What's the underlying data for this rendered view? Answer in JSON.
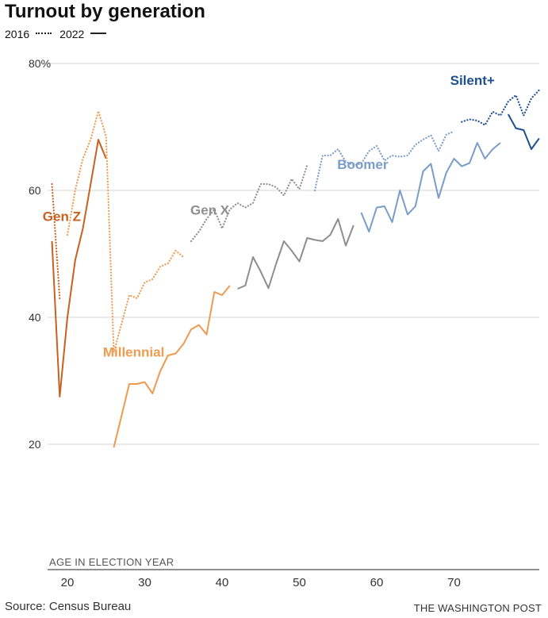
{
  "title": "Turnout by generation",
  "legend": {
    "dotted_label": "2016",
    "solid_label": "2022"
  },
  "source": "Source: Census Bureau",
  "credit": "THE WASHINGTON POST",
  "colors": {
    "genz": "#c8611f",
    "millennial": "#ef9a4f",
    "genx": "#8e8e8e",
    "boomer": "#7a9cc9",
    "silent": "#1d4f91"
  },
  "chart_data": {
    "type": "line",
    "title": "Turnout by generation",
    "xlabel": "AGE IN ELECTION YEAR",
    "ylabel": "",
    "xlim": [
      18,
      80
    ],
    "ylim": [
      0,
      80
    ],
    "x_ticks": [
      20,
      30,
      40,
      50,
      60,
      70
    ],
    "y_ticks": [
      {
        "value": 20,
        "label": "20"
      },
      {
        "value": 40,
        "label": "40"
      },
      {
        "value": 60,
        "label": "60"
      },
      {
        "value": 80,
        "label": "80%"
      }
    ],
    "series": [
      {
        "name": "Gen Z",
        "year": "2016",
        "color_key": "genz",
        "style": "dotted",
        "x": [
          18,
          19
        ],
        "y": [
          61,
          43
        ]
      },
      {
        "name": "Gen Z",
        "year": "2022",
        "color_key": "genz",
        "style": "solid",
        "x": [
          18,
          19,
          20,
          21,
          22,
          23,
          24,
          25
        ],
        "y": [
          52,
          27.5,
          40,
          49,
          54,
          61,
          68,
          65
        ]
      },
      {
        "name": "Millennial",
        "year": "2016",
        "color_key": "millennial",
        "style": "dotted",
        "x": [
          20,
          21,
          22,
          23,
          24,
          25,
          26,
          27,
          28,
          29,
          30,
          31,
          32,
          33,
          34,
          35
        ],
        "y": [
          53,
          60,
          65,
          68,
          72.5,
          68.5,
          34.5,
          39,
          43.5,
          43,
          45.5,
          46,
          48,
          48.5,
          50.5,
          49.5
        ]
      },
      {
        "name": "Millennial",
        "year": "2022",
        "color_key": "millennial",
        "style": "solid",
        "x": [
          26,
          27,
          28,
          29,
          30,
          31,
          32,
          33,
          34,
          35,
          36,
          37,
          38,
          39,
          40,
          41
        ],
        "y": [
          19.5,
          24.5,
          29.5,
          29.5,
          29.8,
          28,
          31.5,
          34,
          34.3,
          35.8,
          38.1,
          38.8,
          37.3,
          44,
          43.5,
          45
        ]
      },
      {
        "name": "Gen X",
        "year": "2016",
        "color_key": "genx",
        "style": "dotted",
        "x": [
          36,
          37,
          38,
          39,
          40,
          41,
          42,
          43,
          44,
          45,
          46,
          47,
          48,
          49,
          50,
          51
        ],
        "y": [
          52,
          53.5,
          55.5,
          57,
          54,
          57,
          58,
          57.3,
          58,
          61,
          61,
          60.5,
          59.2,
          61.8,
          60.2,
          64
        ]
      },
      {
        "name": "Gen X",
        "year": "2022",
        "color_key": "genx",
        "style": "solid",
        "x": [
          42,
          43,
          44,
          45,
          46,
          47,
          48,
          49,
          50,
          51,
          52,
          53,
          54,
          55,
          56,
          57
        ],
        "y": [
          44.5,
          45,
          49.5,
          47.2,
          44.6,
          48.5,
          52,
          50.5,
          48.8,
          52.5,
          52.2,
          52,
          53,
          55.5,
          51.3,
          54.5
        ]
      },
      {
        "name": "Boomer",
        "year": "2016",
        "color_key": "boomer",
        "style": "dotted",
        "x": [
          52,
          53,
          54,
          55,
          56,
          57,
          58,
          59,
          60,
          61,
          62,
          63,
          64,
          65,
          66,
          67,
          68,
          69,
          70
        ],
        "y": [
          60,
          65.5,
          65.5,
          66.5,
          64.5,
          64,
          64.2,
          66.2,
          67,
          64.7,
          65.5,
          65.3,
          65.5,
          67.2,
          68,
          68.7,
          66.2,
          68.8,
          69.3
        ]
      },
      {
        "name": "Boomer",
        "year": "2022",
        "color_key": "boomer",
        "style": "solid",
        "x": [
          58,
          59,
          60,
          61,
          62,
          63,
          64,
          65,
          66,
          67,
          68,
          69,
          70,
          71,
          72,
          73,
          74,
          75,
          76
        ],
        "y": [
          56.5,
          53.5,
          57.3,
          57.5,
          55,
          60,
          56.2,
          57.5,
          63,
          64.2,
          58.8,
          62.8,
          65,
          63.8,
          64.3,
          67.5,
          65,
          66.5,
          67.5
        ]
      },
      {
        "name": "Silent+",
        "year": "2016",
        "color_key": "silent",
        "style": "dotted",
        "x": [
          71,
          72,
          73,
          74,
          75,
          76,
          77,
          78,
          79,
          80,
          81
        ],
        "y": [
          70.8,
          71.2,
          71,
          70.3,
          72.4,
          71.8,
          74,
          75,
          71.8,
          74.5,
          75.8
        ]
      },
      {
        "name": "Silent+",
        "year": "2022",
        "color_key": "silent",
        "style": "solid",
        "x": [
          77,
          78,
          79,
          80,
          81
        ],
        "y": [
          72,
          69.8,
          69.5,
          66.5,
          68.2
        ]
      }
    ],
    "labels": [
      {
        "text": "Gen Z",
        "color_key": "genz",
        "x": 16.8,
        "y": 55.2
      },
      {
        "text": "Millennial",
        "color_key": "millennial",
        "x": 24.6,
        "y": 33.8
      },
      {
        "text": "Gen X",
        "color_key": "genx",
        "x": 35.9,
        "y": 56.2
      },
      {
        "text": "Boomer",
        "color_key": "boomer",
        "x": 54.9,
        "y": 63.4
      },
      {
        "text": "Silent+",
        "color_key": "silent",
        "x": 69.5,
        "y": 76.6
      }
    ]
  }
}
